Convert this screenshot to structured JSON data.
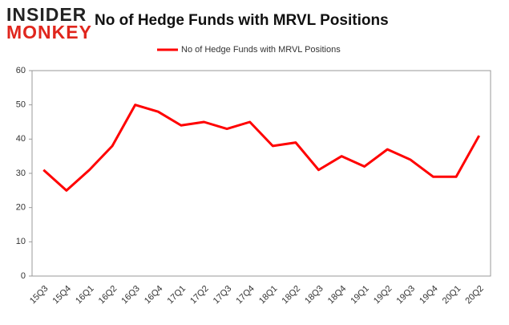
{
  "logo": [
    "INSIDER",
    "MONKEY"
  ],
  "chart_data": {
    "type": "line",
    "title": "No of Hedge Funds with MRVL Positions",
    "categories": [
      "15Q3",
      "15Q4",
      "16Q1",
      "16Q2",
      "16Q3",
      "16Q4",
      "17Q1",
      "17Q2",
      "17Q3",
      "17Q4",
      "18Q1",
      "18Q2",
      "18Q3",
      "18Q4",
      "19Q1",
      "19Q2",
      "19Q3",
      "19Q4",
      "20Q1",
      "20Q2"
    ],
    "series": [
      {
        "name": "No of Hedge Funds with MRVL Positions",
        "color": "#ff0000",
        "values": [
          31,
          25,
          31,
          38,
          50,
          48,
          44,
          45,
          43,
          45,
          38,
          39,
          31,
          35,
          32,
          37,
          34,
          29,
          29,
          41
        ]
      }
    ],
    "ylim": [
      0,
      60
    ],
    "yticks": [
      0,
      10,
      20,
      30,
      40,
      50,
      60
    ],
    "grid": false,
    "legend": "top"
  }
}
